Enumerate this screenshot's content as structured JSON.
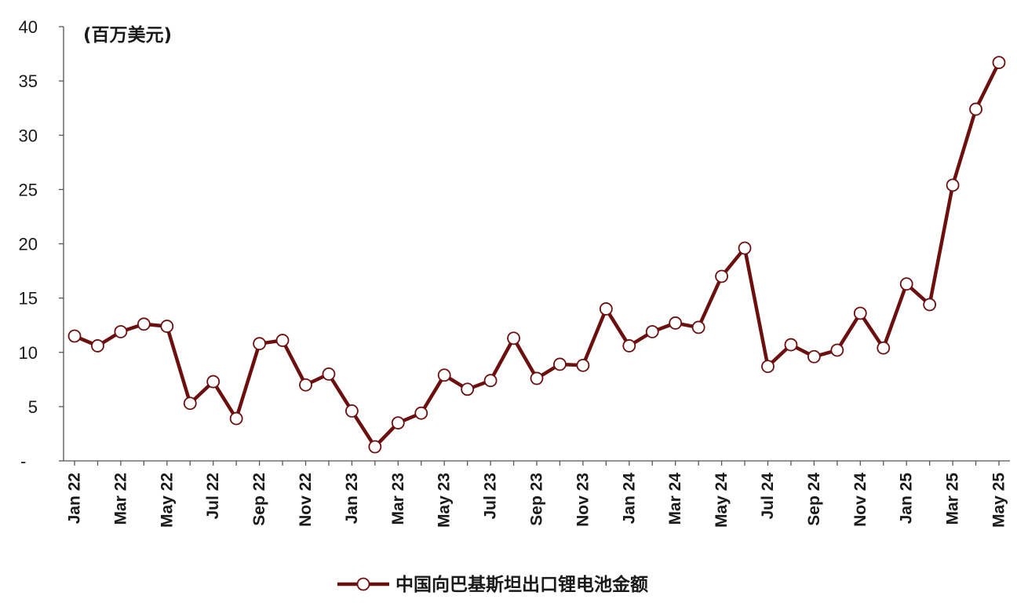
{
  "chart_data": {
    "type": "line",
    "unit_label": "(百万美元)",
    "ylim": [
      0,
      40
    ],
    "yticks": [
      {
        "value": 0,
        "label": "-"
      },
      {
        "value": 5,
        "label": "5"
      },
      {
        "value": 10,
        "label": "10"
      },
      {
        "value": 15,
        "label": "15"
      },
      {
        "value": 20,
        "label": "20"
      },
      {
        "value": 25,
        "label": "25"
      },
      {
        "value": 30,
        "label": "30"
      },
      {
        "value": 35,
        "label": "35"
      },
      {
        "value": 40,
        "label": "40"
      }
    ],
    "x": [
      "Jan 22",
      "Feb 22",
      "Mar 22",
      "Apr 22",
      "May 22",
      "Jun 22",
      "Jul 22",
      "Aug 22",
      "Sep 22",
      "Oct 22",
      "Nov 22",
      "Dec 22",
      "Jan 23",
      "Feb 23",
      "Mar 23",
      "Apr 23",
      "May 23",
      "Jun 23",
      "Jul 23",
      "Aug 23",
      "Sep 23",
      "Oct 23",
      "Nov 23",
      "Dec 23",
      "Jan 24",
      "Feb 24",
      "Mar 24",
      "Apr 24",
      "May 24",
      "Jun 24",
      "Jul 24",
      "Aug 24",
      "Sep 24",
      "Oct 24",
      "Nov 24",
      "Dec 24",
      "Jan 25",
      "Feb 25",
      "Mar 25",
      "Apr 25",
      "May 25"
    ],
    "xtick_labels": [
      "Jan 22",
      "Mar 22",
      "May 22",
      "Jul 22",
      "Sep 22",
      "Nov 22",
      "Jan 23",
      "Mar 23",
      "May 23",
      "Jul 23",
      "Sep 23",
      "Nov 23",
      "Jan 24",
      "Mar 24",
      "May 24",
      "Jul 24",
      "Sep 24",
      "Nov 24",
      "Jan 25",
      "Mar 25",
      "May 25"
    ],
    "series": [
      {
        "name": "中国向巴基斯坦出口锂电池金额",
        "color": "#6b0f0f",
        "values": [
          11.5,
          10.6,
          11.9,
          12.6,
          12.4,
          5.3,
          7.3,
          3.9,
          10.8,
          11.1,
          7.0,
          8.0,
          4.6,
          1.3,
          3.5,
          4.4,
          7.9,
          6.6,
          7.4,
          11.3,
          7.6,
          8.9,
          8.8,
          14.0,
          10.6,
          11.9,
          12.7,
          12.3,
          17.0,
          19.6,
          8.7,
          10.7,
          9.6,
          10.2,
          13.6,
          10.4,
          16.3,
          14.4,
          25.4,
          32.4,
          36.7
        ]
      }
    ],
    "grid": false,
    "legend": "bottom-center"
  }
}
